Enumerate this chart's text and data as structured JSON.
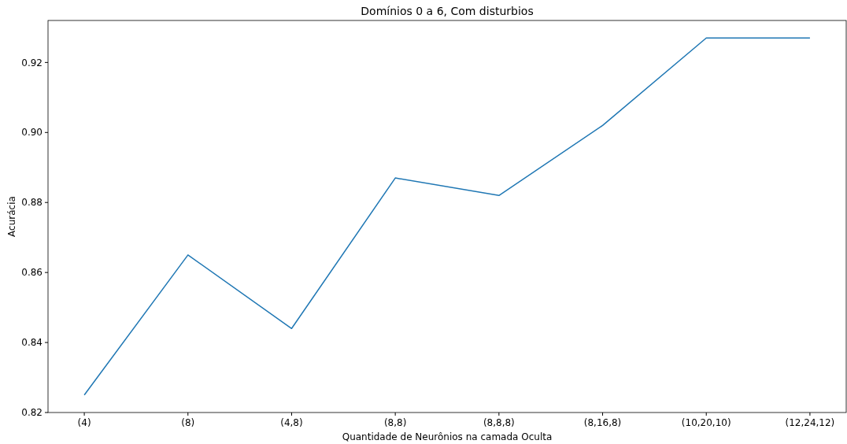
{
  "chart_data": {
    "type": "line",
    "title": "Domínios 0 a 6, Com disturbios",
    "xlabel": "Quantidade de Neurônios na camada Oculta",
    "ylabel": "Acurácia",
    "categories": [
      "(4)",
      "(8)",
      "(4,8)",
      "(8,8)",
      "(8,8,8)",
      "(8,16,8)",
      "(10,20,10)",
      "(12,24,12)"
    ],
    "series": [
      {
        "color": "#1f77b4",
        "values": [
          0.825,
          0.865,
          0.844,
          0.887,
          0.882,
          0.902,
          0.927,
          0.927
        ]
      }
    ],
    "ylim": [
      0.82,
      0.932
    ],
    "yticks": [
      {
        "value": 0.82,
        "label": "0.82"
      },
      {
        "value": 0.84,
        "label": "0.84"
      },
      {
        "value": 0.86,
        "label": "0.86"
      },
      {
        "value": 0.88,
        "label": "0.88"
      },
      {
        "value": 0.9,
        "label": "0.90"
      },
      {
        "value": 0.92,
        "label": "0.92"
      }
    ],
    "grid": false
  }
}
